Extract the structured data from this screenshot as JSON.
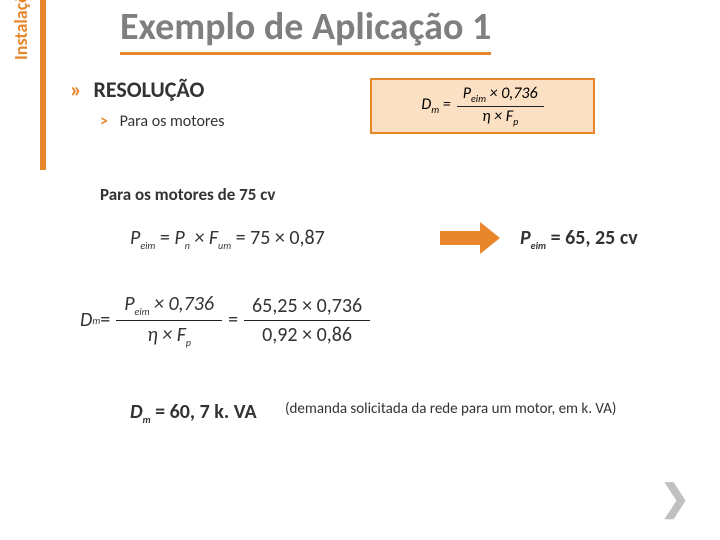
{
  "sidebar": {
    "label": "Instalações Elétricas II"
  },
  "title": "Exemplo de Aplicação 1",
  "section": {
    "bullet": "»",
    "label": "RESOLUÇÃO"
  },
  "sub": {
    "bullet": "˃",
    "label": "Para os motores"
  },
  "formula_box": {
    "lhs": "D",
    "lhs_sub": "m",
    "eq": "=",
    "num_a": "P",
    "num_a_sub": "eim",
    "num_op": " × 0,736",
    "den_a": "η × F",
    "den_a_sub": "p",
    "bg_color": "#fbe0c3",
    "border_color": "#e8862c"
  },
  "line2": "Para os motores de 75 cv",
  "line3": {
    "p1": "P",
    "p1_sub": "eim",
    "eq1": " = ",
    "p2": "P",
    "p2_sub": "n",
    "times": " × F",
    "p3_sub": "um",
    "rhs": " = 75 × 0,87"
  },
  "result1": {
    "p": "P",
    "p_sub": "eim",
    "eq": " = 65, 25",
    "unit": " cv"
  },
  "line4": {
    "lhs": "D",
    "lhs_sub": "m",
    "eq": " = ",
    "num1_a": "P",
    "num1_sub": "eim",
    "num1_b": " × 0,736",
    "den1_a": "η × F",
    "den1_sub": "p",
    "eq2": " = ",
    "num2": "65,25 × 0,736",
    "den2": "0,92 × 0,86"
  },
  "line5": {
    "d": "D",
    "sub": "m",
    "eq": " = 60, 7",
    "unit": " k. VA"
  },
  "note": "(demanda solicitada da rede para um motor, em k. VA)",
  "nav": "❯",
  "colors": {
    "accent": "#e8862c",
    "title_grey": "#7f7f7f"
  }
}
